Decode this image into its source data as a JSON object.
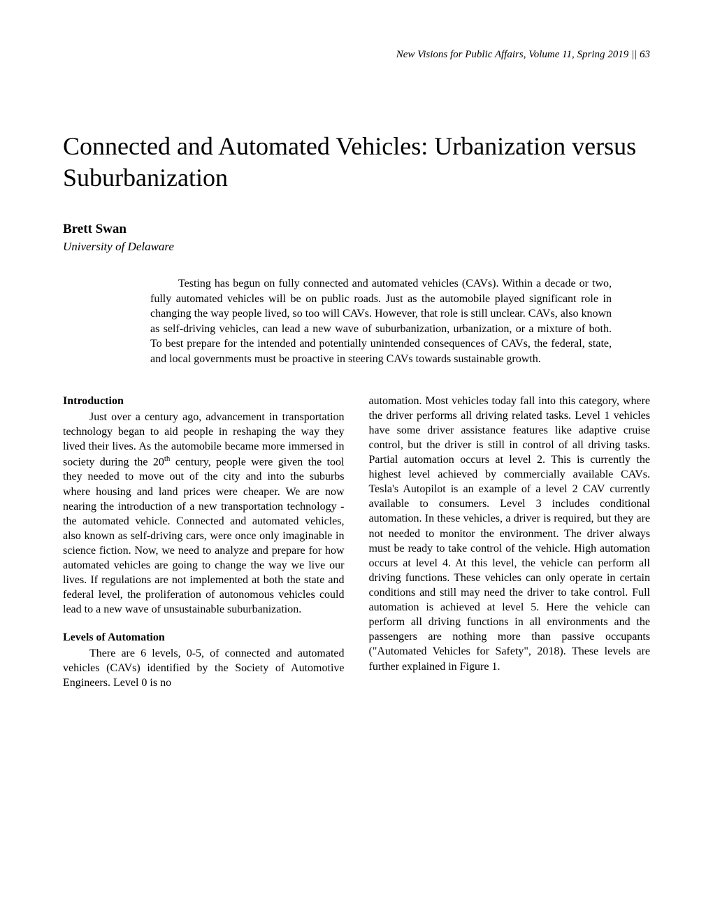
{
  "header": {
    "journal": "New Visions for Public Affairs",
    "issue": ", Volume 11, Spring 2019 || 63"
  },
  "title": "Connected and Automated Vehicles: Urbanization versus Suburbanization",
  "author": "Brett Swan",
  "affiliation": "University of Delaware",
  "abstract": "Testing has begun on fully connected and automated vehicles (CAVs). Within a decade or two, fully automated vehicles will be on public roads. Just as the automobile played significant role in changing the way people lived, so too will CAVs. However, that role is still unclear. CAVs, also known as self-driving vehicles, can lead a new wave of suburbanization, urbanization, or a mixture of both. To best prepare for the intended and potentially unintended consequences of CAVs, the federal, state, and local governments must be proactive in steering CAVs towards sustainable growth.",
  "sections": {
    "intro_heading": "Introduction",
    "intro_p1_a": "Just over a century ago, advancement in transportation technology began to aid people in reshaping the way they lived their lives. As the automobile became more immersed in society during the 20",
    "intro_p1_sup": "th",
    "intro_p1_b": " century, people were given the tool they needed to move out of the city and into the suburbs where housing and land prices were cheaper. We are now nearing the introduction of a new transportation technology - the automated vehicle. Connected and automated vehicles, also known as self-driving cars, were once only imaginable in science fiction. Now, we need to analyze and prepare for how automated vehicles are going to change the way we live our lives. If regulations are not implemented at both the state and federal level, the proliferation of autonomous vehicles could lead to a new wave of unsustainable suburbanization.",
    "levels_heading": "Levels of Automation",
    "levels_col1": "There are 6 levels, 0-5, of connected and automated vehicles (CAVs) identified by the Society of Automotive Engineers. Level 0 is no",
    "levels_col2": "automation. Most vehicles today fall into this category, where the driver performs all driving related tasks. Level 1 vehicles have some driver assistance features like adaptive cruise control, but the driver is still in control of all driving tasks. Partial automation occurs at level 2. This is currently the highest level achieved by commercially available CAVs. Tesla's Autopilot is an example of a level 2 CAV currently available to consumers. Level 3 includes conditional automation. In these vehicles, a driver is required, but they are not needed to monitor the environment. The driver always must be ready to take control of the vehicle. High automation occurs at level 4. At this level, the vehicle can perform all driving functions. These vehicles can only operate in certain conditions and still may need the driver to take control. Full automation is achieved at level 5. Here the vehicle can perform all driving functions in all environments and the passengers are nothing more than passive occupants (\"Automated Vehicles for Safety\", 2018). These levels are further explained in Figure 1."
  }
}
